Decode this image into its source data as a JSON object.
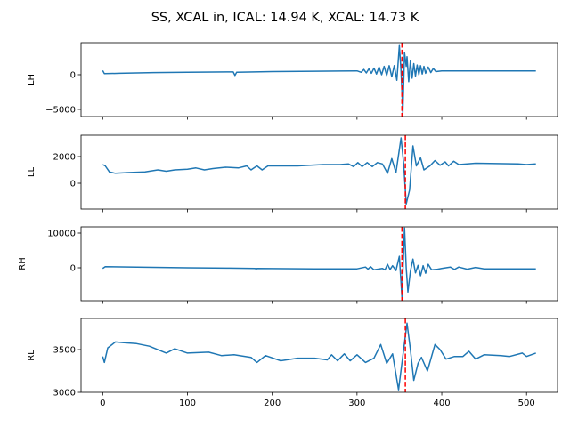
{
  "chart_data": {
    "type": "line",
    "title": "SS, XCAL in, ICAL: 14.94 K, XCAL: 14.73 K",
    "xlim": [
      -25.55,
      536.55
    ],
    "xticks": [
      0,
      100,
      200,
      300,
      400,
      500
    ],
    "xtick_labels": [
      "0",
      "100",
      "200",
      "300",
      "400",
      "500"
    ],
    "line_color": "#1f77b4",
    "marker_color": "#ff0000",
    "subplots": [
      {
        "ylabel": "LH",
        "ylim": [
          -6030,
          4615
        ],
        "yticks": [
          -5000,
          0
        ],
        "ytick_labels": [
          "−5000",
          "0"
        ],
        "vline_x": 353,
        "x": [
          0,
          2,
          20,
          60,
          100,
          150,
          154,
          156,
          158,
          200,
          250,
          300,
          305,
          308,
          311,
          314,
          317,
          320,
          323,
          326,
          329,
          332,
          335,
          338,
          341,
          344,
          347,
          350,
          352,
          354,
          356,
          358,
          359,
          361,
          363,
          365,
          367,
          369,
          371,
          373,
          375,
          377,
          379,
          381,
          384,
          387,
          390,
          393,
          400,
          450,
          511
        ],
        "y": [
          600,
          150,
          200,
          300,
          350,
          400,
          400,
          -100,
          350,
          450,
          500,
          550,
          350,
          750,
          250,
          850,
          200,
          950,
          100,
          1100,
          0,
          1200,
          -100,
          1300,
          -300,
          1300,
          -800,
          4200,
          500,
          -5500,
          3200,
          1200,
          2600,
          -1000,
          2000,
          -500,
          1600,
          -200,
          1400,
          0,
          1300,
          100,
          1200,
          200,
          1100,
          300,
          900,
          450,
          550,
          550,
          550
        ]
      },
      {
        "ylabel": "LL",
        "ylim": [
          -1933,
          3600
        ],
        "yticks": [
          0,
          2000
        ],
        "ytick_labels": [
          "0",
          "2000"
        ],
        "vline_x": 357,
        "x": [
          0,
          3,
          8,
          15,
          30,
          50,
          65,
          75,
          85,
          100,
          110,
          120,
          130,
          145,
          160,
          170,
          175,
          182,
          188,
          195,
          230,
          260,
          280,
          290,
          296,
          301,
          306,
          312,
          318,
          324,
          330,
          336,
          341,
          346,
          352,
          355,
          358,
          362,
          366,
          370,
          375,
          379,
          386,
          392,
          398,
          404,
          408,
          414,
          420,
          440,
          490,
          500,
          511
        ],
        "y": [
          1400,
          1300,
          850,
          750,
          800,
          850,
          1000,
          900,
          1000,
          1050,
          1150,
          1000,
          1100,
          1200,
          1150,
          1300,
          1000,
          1300,
          1000,
          1300,
          1300,
          1400,
          1400,
          1450,
          1250,
          1550,
          1250,
          1550,
          1250,
          1550,
          1450,
          750,
          1850,
          800,
          3400,
          1500,
          -1550,
          -500,
          2800,
          1300,
          1900,
          1000,
          1300,
          1700,
          1350,
          1600,
          1300,
          1650,
          1400,
          1500,
          1450,
          1400,
          1450
        ]
      },
      {
        "ylabel": "RH",
        "ylim": [
          -9490,
          11795
        ],
        "yticks": [
          0,
          10000
        ],
        "ytick_labels": [
          "0",
          "10000"
        ],
        "vline_x": 353,
        "x": [
          0,
          3,
          50,
          100,
          150,
          180,
          181,
          182,
          250,
          300,
          310,
          313,
          316,
          320,
          330,
          333,
          336,
          339,
          342,
          346,
          350,
          353,
          356,
          358,
          360,
          363,
          366,
          369,
          372,
          375,
          378,
          381,
          384,
          388,
          395,
          400,
          410,
          415,
          420,
          430,
          440,
          450,
          511
        ],
        "y": [
          -200,
          300,
          150,
          0,
          -100,
          -200,
          -400,
          -200,
          -300,
          -300,
          200,
          -400,
          300,
          -600,
          -200,
          -600,
          1000,
          -500,
          600,
          -800,
          3300,
          -8500,
          11500,
          0,
          -7000,
          -1000,
          2500,
          -1500,
          700,
          -2300,
          600,
          -1600,
          1000,
          -600,
          -400,
          -200,
          200,
          -500,
          200,
          -400,
          100,
          -300,
          -300
        ]
      },
      {
        "ylabel": "RL",
        "ylim": [
          3000,
          3865
        ],
        "yticks": [
          3000,
          3500
        ],
        "ytick_labels": [
          "3000",
          "3500"
        ],
        "vline_x": 357,
        "x": [
          0,
          2,
          6,
          15,
          25,
          40,
          55,
          75,
          85,
          100,
          125,
          140,
          155,
          175,
          182,
          192,
          210,
          230,
          250,
          265,
          270,
          277,
          285,
          292,
          300,
          310,
          320,
          328,
          335,
          342,
          349,
          355,
          359,
          363,
          367,
          372,
          376,
          383,
          392,
          398,
          405,
          415,
          425,
          432,
          440,
          450,
          470,
          480,
          495,
          500,
          511
        ],
        "y": [
          3420,
          3350,
          3520,
          3590,
          3580,
          3570,
          3540,
          3460,
          3510,
          3460,
          3470,
          3430,
          3440,
          3410,
          3350,
          3430,
          3370,
          3400,
          3400,
          3380,
          3440,
          3370,
          3450,
          3370,
          3440,
          3350,
          3400,
          3560,
          3340,
          3450,
          3030,
          3500,
          3810,
          3500,
          3140,
          3340,
          3410,
          3250,
          3560,
          3500,
          3390,
          3420,
          3420,
          3480,
          3390,
          3440,
          3430,
          3420,
          3460,
          3420,
          3460
        ]
      }
    ]
  }
}
